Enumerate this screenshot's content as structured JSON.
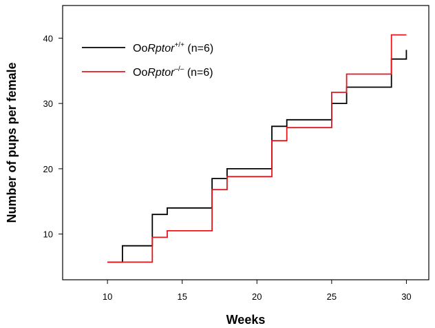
{
  "chart_data": {
    "type": "line",
    "step": true,
    "xlabel": "Weeks",
    "ylabel": "Number of pups per female",
    "xlim": [
      7,
      31.5
    ],
    "ylim": [
      3,
      45
    ],
    "xticks": [
      10,
      15,
      20,
      25,
      30
    ],
    "yticks": [
      10,
      20,
      30,
      40
    ],
    "grid": false,
    "legend_position": "top-left",
    "series": [
      {
        "name_prefix": "Oo",
        "name_gene": "Rptor",
        "name_superscript": "+/+",
        "name_suffix": " (n=6)",
        "color": "#000000",
        "points": [
          [
            10,
            5.7
          ],
          [
            11,
            8.2
          ],
          [
            13,
            13.0
          ],
          [
            14,
            14.0
          ],
          [
            17,
            18.5
          ],
          [
            18,
            20.0
          ],
          [
            21,
            26.5
          ],
          [
            22,
            27.5
          ],
          [
            25,
            30.0
          ],
          [
            26,
            32.5
          ],
          [
            29,
            36.8
          ],
          [
            30,
            38.2
          ]
        ]
      },
      {
        "name_prefix": "Oo",
        "name_gene": "Rptor",
        "name_superscript": "–/–",
        "name_suffix": " (n=6)",
        "color": "#e8141b",
        "points": [
          [
            10,
            5.7
          ],
          [
            13,
            9.5
          ],
          [
            14,
            10.5
          ],
          [
            17,
            16.8
          ],
          [
            18,
            18.8
          ],
          [
            21,
            24.3
          ],
          [
            22,
            26.3
          ],
          [
            25,
            31.7
          ],
          [
            26,
            34.5
          ],
          [
            29,
            40.5
          ],
          [
            30,
            40.5
          ]
        ]
      }
    ]
  }
}
